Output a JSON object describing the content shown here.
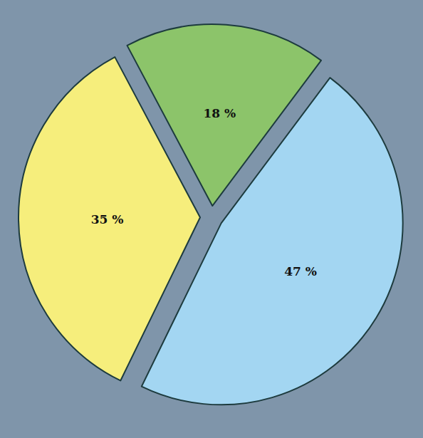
{
  "chart_data": {
    "type": "pie",
    "values": [
      18,
      47,
      35
    ],
    "value_labels": [
      "18 %",
      "47 %",
      "35 %"
    ],
    "colors": [
      "#8cc46a",
      "#a3d6f2",
      "#f6ee7c"
    ],
    "data_labels": true
  }
}
